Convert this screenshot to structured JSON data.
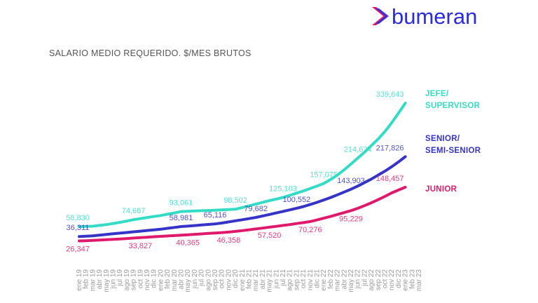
{
  "brand": "bumeran",
  "chart_data": {
    "type": "line",
    "title": "SALARIO MEDIO REQUERIDO. $/MES BRUTOS",
    "categories": [
      "ene 19",
      "feb 19",
      "mar 19",
      "abr 19",
      "may 19",
      "jun 19",
      "jul 19",
      "ago 19",
      "sep 19",
      "oct 19",
      "nov 19",
      "dic 19",
      "ene 20",
      "feb 20",
      "mar 20",
      "abr 20",
      "may 20",
      "jun 20",
      "jul 20",
      "ago 20",
      "sep 20",
      "oct 20",
      "nov 20",
      "dic 20",
      "ene 21",
      "feb 21",
      "mar 21",
      "abr 21",
      "may 21",
      "jun 21",
      "jul 21",
      "ago 21",
      "sep 21",
      "oct 21",
      "nov 21",
      "dic 21",
      "ene 22",
      "feb 22",
      "mar 22",
      "abr 22",
      "may 22",
      "jun 22",
      "jul 22",
      "ago 22",
      "sep 22",
      "oct 22",
      "nov 22",
      "dic 22",
      "ene 23",
      "feb 23",
      "mar 23"
    ],
    "series": [
      {
        "name": "JEFE/\nSUPERVISOR",
        "color": "#34dcc6",
        "values": [
          58830,
          59200,
          59800,
          61500,
          63500,
          66000,
          68500,
          71500,
          74687,
          77000,
          79500,
          82000,
          84000,
          87000,
          90000,
          93061,
          93800,
          94500,
          95000,
          95500,
          96000,
          96800,
          97600,
          98502,
          102000,
          106000,
          110000,
          114000,
          118000,
          121500,
          125103,
          130000,
          135000,
          140000,
          145500,
          151000,
          157075,
          166000,
          176000,
          188000,
          201000,
          214624,
          228000,
          243000,
          258000,
          275000,
          295000,
          317000,
          339643,
          null,
          null
        ],
        "value_labels": [
          "58,830",
          null,
          null,
          null,
          null,
          null,
          null,
          null,
          "74,687",
          null,
          null,
          null,
          null,
          null,
          null,
          "93,061",
          null,
          null,
          null,
          null,
          null,
          null,
          null,
          "98,502",
          null,
          null,
          null,
          null,
          null,
          null,
          "125,103",
          null,
          null,
          null,
          null,
          null,
          "157,075",
          null,
          null,
          null,
          null,
          "214,624",
          null,
          null,
          null,
          null,
          null,
          null,
          "339,643",
          null,
          null
        ]
      },
      {
        "name": "SENIOR/\nSEMI-SENIOR",
        "color": "#3634c8",
        "values": [
          36311,
          37000,
          38000,
          39500,
          41000,
          42500,
          44000,
          45500,
          47000,
          48500,
          50000,
          51500,
          53000,
          55000,
          57000,
          58981,
          60000,
          61300,
          62500,
          63800,
          65116,
          67000,
          69500,
          72000,
          74500,
          77000,
          79682,
          83000,
          86500,
          90000,
          93500,
          97000,
          100552,
          104500,
          109000,
          114000,
          119500,
          125000,
          131000,
          137500,
          143903,
          151000,
          159000,
          167000,
          176000,
          185000,
          195000,
          206000,
          217826,
          null,
          null
        ],
        "value_labels": [
          "36,311",
          null,
          null,
          null,
          null,
          null,
          null,
          null,
          null,
          null,
          null,
          null,
          null,
          null,
          null,
          "58,981",
          null,
          null,
          null,
          null,
          "65,116",
          null,
          null,
          null,
          null,
          null,
          "79,682",
          null,
          null,
          null,
          null,
          null,
          "100,552",
          null,
          null,
          null,
          null,
          null,
          null,
          null,
          "143,903",
          null,
          null,
          null,
          null,
          null,
          null,
          null,
          "217,826",
          null,
          null
        ]
      },
      {
        "name": "JUNIOR",
        "color": "#df1a6c",
        "values": [
          26347,
          26800,
          27400,
          28200,
          29000,
          29800,
          30700,
          31700,
          32800,
          33827,
          34800,
          35800,
          36700,
          37600,
          38500,
          39400,
          40365,
          41300,
          42300,
          43300,
          44300,
          45300,
          46358,
          48000,
          49800,
          51600,
          53600,
          55500,
          57520,
          59500,
          61500,
          63500,
          65800,
          68000,
          70276,
          74000,
          78000,
          82000,
          86500,
          90800,
          95229,
          100500,
          106500,
          113000,
          120000,
          127500,
          135500,
          142000,
          148457,
          null,
          null
        ],
        "value_labels": [
          "26,347",
          null,
          null,
          null,
          null,
          null,
          null,
          null,
          null,
          "33,827",
          null,
          null,
          null,
          null,
          null,
          null,
          "40,365",
          null,
          null,
          null,
          null,
          null,
          "46,358",
          null,
          null,
          null,
          null,
          null,
          "57,520",
          null,
          null,
          null,
          null,
          null,
          "70,276",
          null,
          null,
          null,
          null,
          null,
          "95,229",
          null,
          null,
          null,
          null,
          null,
          null,
          null,
          "148,457",
          null,
          null
        ]
      }
    ]
  }
}
